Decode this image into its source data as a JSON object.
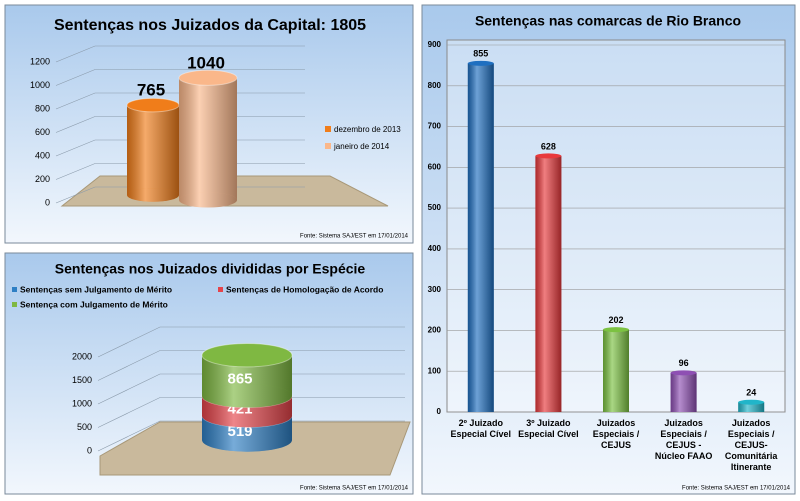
{
  "chart_data": [
    {
      "type": "cylinder_bar",
      "title": "Sentenças nos Juizados da Capital: 1805",
      "series": [
        {
          "name": "dezembro de 2013",
          "color": "#f07d1a",
          "values": [
            765
          ]
        },
        {
          "name": "janeiro de 2014",
          "color": "#fab78a",
          "values": [
            1040
          ]
        }
      ],
      "ylim": [
        0,
        1200
      ],
      "yticks": [
        0,
        200,
        400,
        600,
        800,
        1000,
        1200
      ],
      "grid": true,
      "legend": "right",
      "note": "Fonte: Sistema SAJ/EST em 17/01/2014"
    },
    {
      "type": "stacked_cylinder",
      "title": "Sentenças nos Juizados divididas por Espécie",
      "series": [
        {
          "name": "Sentenças sem Julgamento de Mérito",
          "color": "#2e7fc4",
          "values": [
            519
          ]
        },
        {
          "name": "Sentenças de Homologação de Acordo",
          "color": "#e5444a",
          "values": [
            421
          ]
        },
        {
          "name": "Sentença com Julgamento de Mérito",
          "color": "#7fb842",
          "values": [
            865
          ]
        }
      ],
      "ylim": [
        0,
        2000
      ],
      "yticks": [
        0,
        500,
        1000,
        1500,
        2000
      ],
      "grid": true,
      "legend": "top",
      "note": "Fonte: Sistema SAJ/EST em 17/01/2014"
    },
    {
      "type": "bar",
      "title": "Sentenças nas comarcas de Rio Branco",
      "categories": [
        "2º Juizado\nEspecial Cível",
        "3º Juizado\nEspecial Cível",
        "Juizados\nEspeciais /\nCEJUS",
        "Juizados\nEspeciais /\nCEJUS -\nNúcleo FAAO",
        "Juizados\nEspeciais /\nCEJUS-\nComunitária\nItinerante"
      ],
      "values": [
        855,
        628,
        202,
        96,
        24
      ],
      "colors": [
        "#1f6fc0",
        "#e8393c",
        "#7cc242",
        "#8e4fb3",
        "#21b5c9"
      ],
      "ylim": [
        0,
        900
      ],
      "yticks": [
        0,
        100,
        200,
        300,
        400,
        500,
        600,
        700,
        800,
        900
      ],
      "grid": true,
      "note": "Fonte: Sistema SAJ/EST em 17/01/2014"
    }
  ]
}
